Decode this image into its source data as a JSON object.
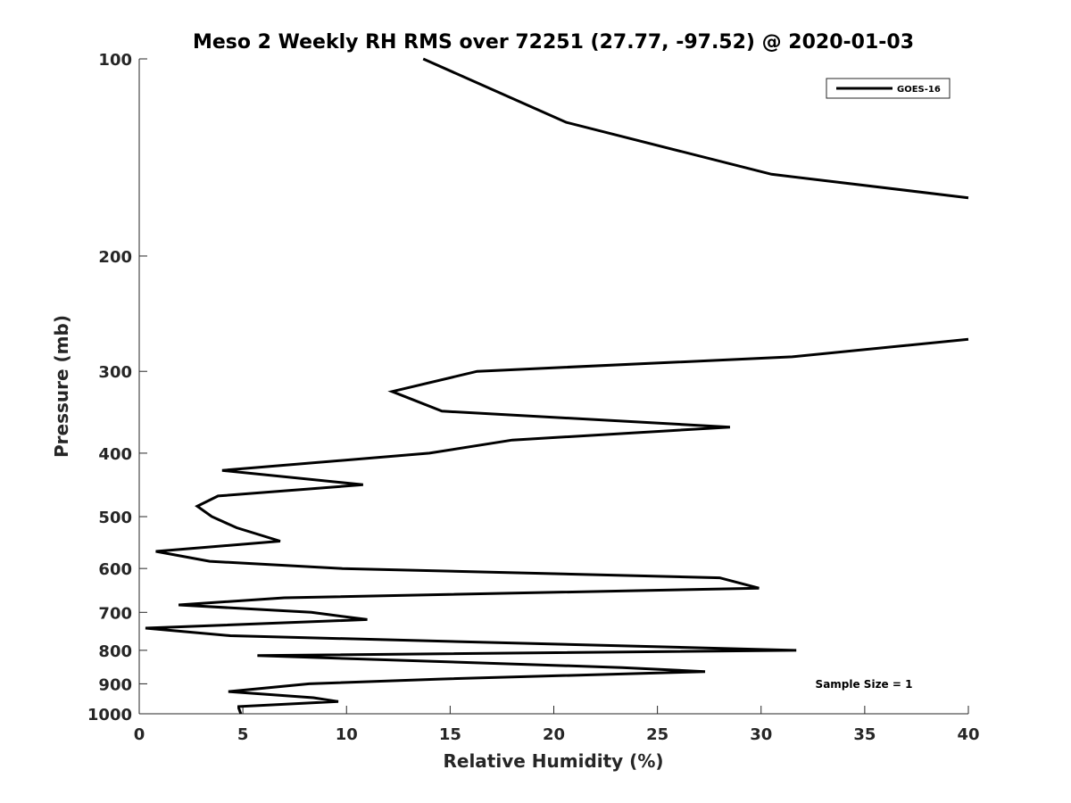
{
  "chart_data": {
    "type": "line",
    "title": "Meso 2 Weekly RH RMS over 72251 (27.77, -97.52) @ 2020-01-03",
    "xlabel": "Relative Humidity (%)",
    "ylabel": "Pressure (mb)",
    "xlim": [
      0,
      40
    ],
    "ylim": [
      100,
      1000
    ],
    "yscale": "log",
    "reverse_y": true,
    "x_ticks": [
      0,
      5,
      10,
      15,
      20,
      25,
      30,
      35,
      40
    ],
    "y_ticks": [
      100,
      200,
      300,
      400,
      500,
      600,
      700,
      800,
      900,
      1000
    ],
    "grid": false,
    "legend_position": "top-right",
    "annotation": "Sample Size = 1",
    "series": [
      {
        "name": "GOES-16",
        "color": "#000000",
        "segments": [
          {
            "x": [
              13.7,
              20.6,
              30.5,
              40.0
            ],
            "y": [
              100,
              125,
              150,
              163
            ]
          },
          {
            "x": [
              40.0,
              31.5,
              16.3,
              12.2,
              14.6,
              28.5,
              18.0,
              14.0,
              4.0,
              10.8,
              3.8,
              2.8,
              3.5,
              4.7,
              6.8,
              0.8,
              3.4,
              9.8,
              28.0,
              29.9,
              7.0,
              1.9,
              8.3,
              11.0,
              0.3,
              4.4,
              31.7,
              5.7,
              23.3,
              27.3,
              14.5,
              8.2,
              4.3,
              8.4,
              9.6,
              4.8,
              4.8,
              4.9
            ],
            "y": [
              268,
              285,
              300,
              322,
              345,
              365,
              382,
              400,
              425,
              447,
              465,
              482,
              500,
              520,
              545,
              565,
              585,
              600,
              620,
              643,
              665,
              682,
              700,
              718,
              740,
              760,
              800,
              815,
              850,
              862,
              885,
              900,
              925,
              945,
              958,
              975,
              980,
              1000
            ]
          }
        ]
      }
    ]
  }
}
